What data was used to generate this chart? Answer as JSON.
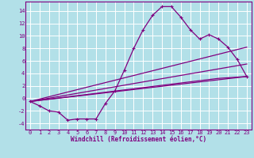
{
  "xlabel": "Windchill (Refroidissement éolien,°C)",
  "background_color": "#b2e0e8",
  "grid_color": "#ffffff",
  "line_color": "#800080",
  "xlim": [
    -0.5,
    23.5
  ],
  "ylim": [
    -5.0,
    15.5
  ],
  "xticks": [
    0,
    1,
    2,
    3,
    4,
    5,
    6,
    7,
    8,
    9,
    10,
    11,
    12,
    13,
    14,
    15,
    16,
    17,
    18,
    19,
    20,
    21,
    22,
    23
  ],
  "yticks": [
    -4,
    -2,
    0,
    2,
    4,
    6,
    8,
    10,
    12,
    14
  ],
  "line1_x": [
    0,
    1,
    2,
    3,
    4,
    5,
    6,
    7,
    8,
    9,
    10,
    11,
    12,
    13,
    14,
    15,
    16,
    17,
    18,
    19,
    20,
    21,
    22,
    23
  ],
  "line1_y": [
    -0.5,
    -1.2,
    -2.0,
    -2.2,
    -3.5,
    -3.3,
    -3.3,
    -3.3,
    -0.8,
    1.2,
    4.5,
    8.0,
    11.0,
    13.3,
    14.7,
    14.7,
    13.0,
    11.0,
    9.5,
    10.2,
    9.5,
    8.2,
    6.2,
    3.5
  ],
  "line2_x": [
    0,
    23
  ],
  "line2_y": [
    -0.5,
    3.5
  ],
  "line3_x": [
    0,
    23
  ],
  "line3_y": [
    -0.5,
    8.2
  ],
  "line4_x": [
    0,
    20,
    23
  ],
  "line4_y": [
    -0.5,
    3.2,
    3.5
  ],
  "line5_x": [
    0,
    23
  ],
  "line5_y": [
    -0.5,
    5.5
  ]
}
